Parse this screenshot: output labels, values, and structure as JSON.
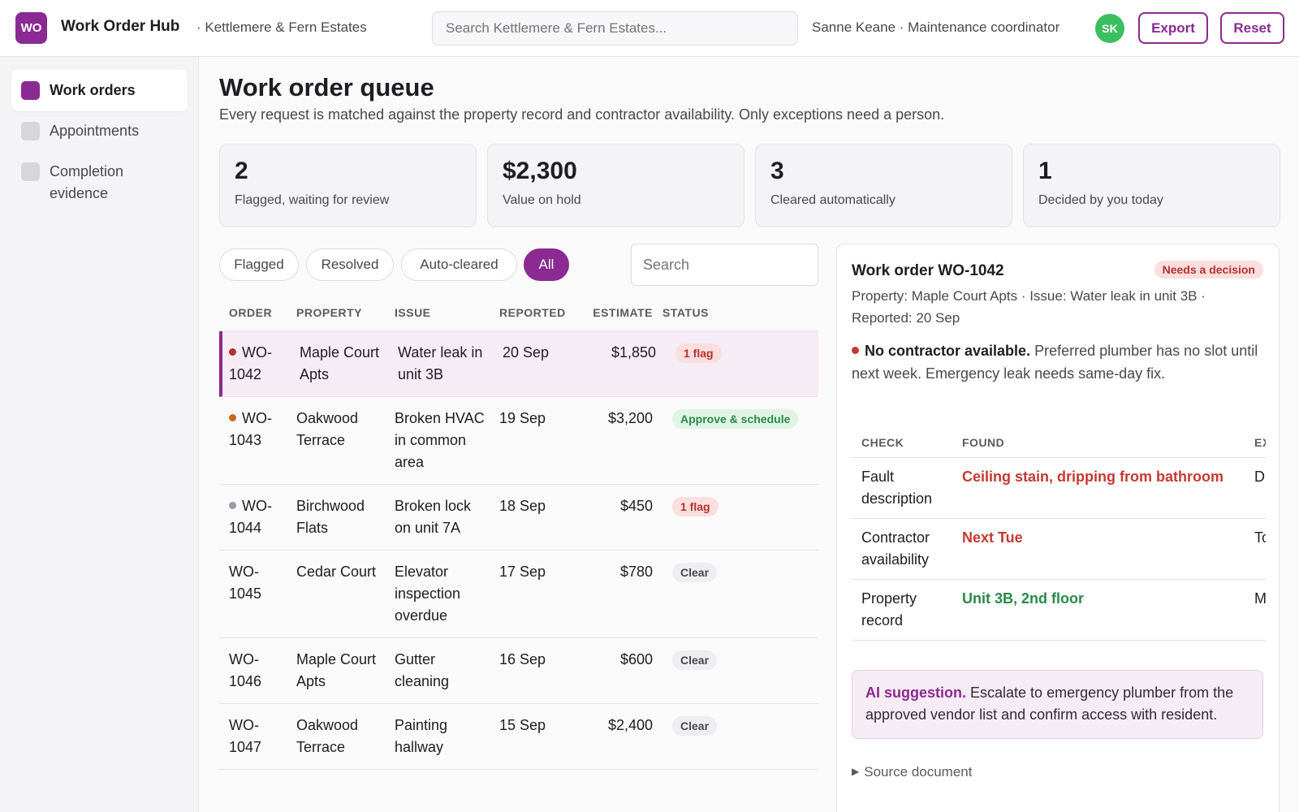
{
  "header": {
    "logo": "WO",
    "app_name": "Work Order Hub",
    "org_name": "· Kettlemere & Fern Estates",
    "search_placeholder": "Search Kettlemere & Fern Estates...",
    "user": "Sanne Keane · Maintenance coordinator",
    "avatar_initials": "SK",
    "export_label": "Export",
    "reset_label": "Reset"
  },
  "sidebar": {
    "items": [
      {
        "label": "Work orders",
        "active": true
      },
      {
        "label": "Appointments",
        "active": false
      },
      {
        "label": "Completion evidence",
        "active": false
      }
    ]
  },
  "main": {
    "title": "Work order queue",
    "subtitle": "Every request is matched against the property record and contractor availability. Only exceptions need a person.",
    "stats": [
      {
        "value": "2",
        "label": "Flagged, waiting for review"
      },
      {
        "value": "$2,300",
        "label": "Value on hold"
      },
      {
        "value": "3",
        "label": "Cleared automatically"
      },
      {
        "value": "1",
        "label": "Decided by you today"
      }
    ],
    "filters": [
      {
        "label": "Flagged",
        "active": false
      },
      {
        "label": "Resolved",
        "active": false
      },
      {
        "label": "Auto-cleared",
        "active": false
      },
      {
        "label": "All",
        "active": true
      }
    ],
    "table_search_placeholder": "Search",
    "columns": [
      "ORDER",
      "PROPERTY",
      "ISSUE",
      "REPORTED",
      "ESTIMATE",
      "STATUS"
    ],
    "rows": [
      {
        "order": "WO-1042",
        "property": "Maple Court Apts",
        "issue": "Water leak in unit 3B",
        "reported": "20 Sep",
        "estimate": "$1,850",
        "status": "1 flag",
        "status_type": "flag",
        "dot": "#b7302e",
        "selected": true
      },
      {
        "order": "WO-1043",
        "property": "Oakwood Terrace",
        "issue": "Broken HVAC in common area",
        "reported": "19 Sep",
        "estimate": "$3,200",
        "status": "Approve & schedule",
        "status_type": "approve",
        "dot": "#c86a1e",
        "selected": false
      },
      {
        "order": "WO-1044",
        "property": "Birchwood Flats",
        "issue": "Broken lock on unit 7A",
        "reported": "18 Sep",
        "estimate": "$450",
        "status": "1 flag",
        "status_type": "flag",
        "dot": "#9a98a6",
        "selected": false
      },
      {
        "order": "WO-1045",
        "property": "Cedar Court",
        "issue": "Elevator inspection overdue",
        "reported": "17 Sep",
        "estimate": "$780",
        "status": "Clear",
        "status_type": "clear",
        "dot": "",
        "selected": false
      },
      {
        "order": "WO-1046",
        "property": "Maple Court Apts",
        "issue": "Gutter cleaning",
        "reported": "16 Sep",
        "estimate": "$600",
        "status": "Clear",
        "status_type": "clear",
        "dot": "",
        "selected": false
      },
      {
        "order": "WO-1047",
        "property": "Oakwood Terrace",
        "issue": "Painting hallway",
        "reported": "15 Sep",
        "estimate": "$2,400",
        "status": "Clear",
        "status_type": "clear",
        "dot": "",
        "selected": false
      }
    ]
  },
  "detail": {
    "title": "Work order WO-1042",
    "badge": "Needs a decision",
    "meta": "Property: Maple Court Apts · Issue: Water leak in unit 3B · Reported: 20 Sep",
    "alert_title": "No contractor available.",
    "alert_body": " Preferred plumber has no slot until next week. Emergency leak needs same-day fix.",
    "check_columns": [
      "CHECK",
      "FOUND",
      "EX"
    ],
    "checks": [
      {
        "check": "Fault description",
        "found": "Ceiling stain, dripping from bathroom",
        "found_tone": "red",
        "expected": "D"
      },
      {
        "check": "Contractor availability",
        "found": "Next Tue",
        "found_tone": "red",
        "expected": "To"
      },
      {
        "check": "Property record",
        "found": "Unit 3B, 2nd floor",
        "found_tone": "green",
        "expected": "M"
      }
    ],
    "ai_label": "AI suggestion.",
    "ai_text": " Escalate to emergency plumber from the approved vendor list and confirm access with resident.",
    "source_label": "Source document"
  }
}
